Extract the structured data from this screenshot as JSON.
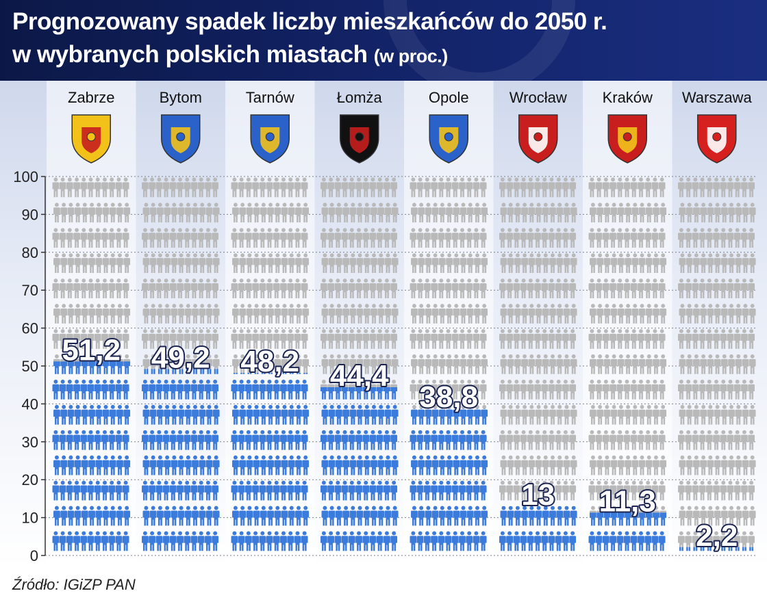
{
  "title": {
    "line1": "Prognozowany spadek liczby mieszkańców do 2050 r.",
    "line2": "w wybranych polskich miastach",
    "unit": "(w proc.)"
  },
  "source": "Źródło: IGiZP PAN",
  "colors": {
    "header_bg": "#13246a",
    "filled": "#3b7bdc",
    "empty": "#b9b9b9",
    "label_text": "#ffffff",
    "label_outline": "#1b2450"
  },
  "icons": {
    "figures": "person-icon",
    "emblems": "coat-of-arms-icon"
  },
  "chart_data": {
    "type": "bar",
    "categories": [
      "Zabrze",
      "Bytom",
      "Tarnów",
      "Łomża",
      "Opole",
      "Wrocław",
      "Kraków",
      "Warszawa"
    ],
    "values": [
      51.2,
      49.2,
      48.2,
      44.4,
      38.8,
      13,
      11.3,
      2.2
    ],
    "value_labels": [
      "51,2",
      "49,2",
      "48,2",
      "44,4",
      "38,8",
      "13",
      "11,3",
      "2,2"
    ],
    "yticks": [
      "0",
      "10",
      "20",
      "30",
      "40",
      "50",
      "60",
      "70",
      "80",
      "90",
      "100"
    ],
    "ylim": [
      0,
      100
    ],
    "grid": true
  }
}
